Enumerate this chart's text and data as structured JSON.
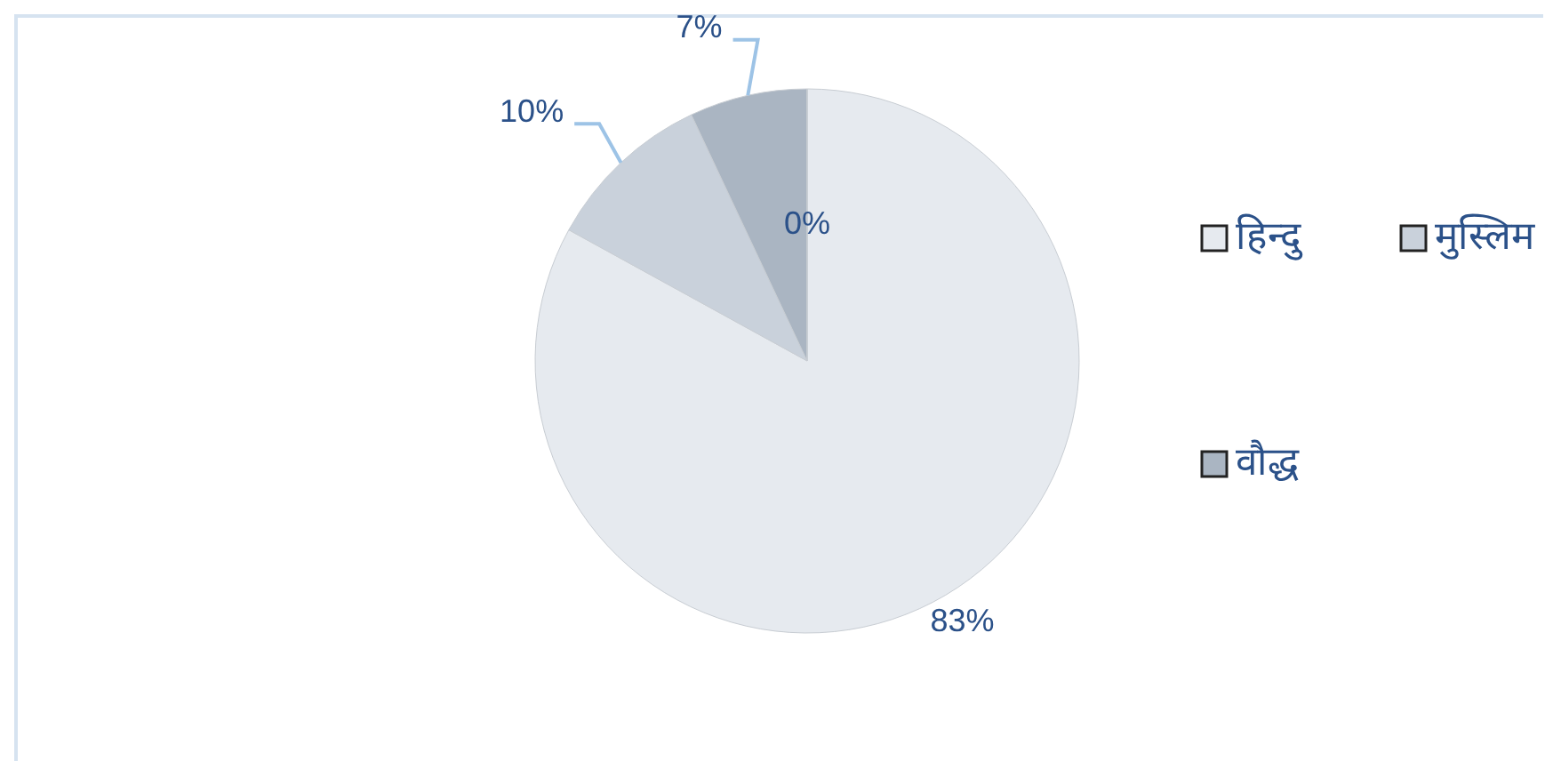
{
  "chart_data": {
    "type": "pie",
    "categories": [
      "हिन्दु",
      "मुस्लिम",
      "वौद्ध",
      null
    ],
    "values": [
      83,
      10,
      7,
      0
    ],
    "colors": [
      "#e6eaef",
      "#c9d1db",
      "#aab5c2",
      "#8e9aa9"
    ],
    "value_labels": [
      "83%",
      "10%",
      "7%",
      "0%"
    ],
    "legend": "right"
  }
}
